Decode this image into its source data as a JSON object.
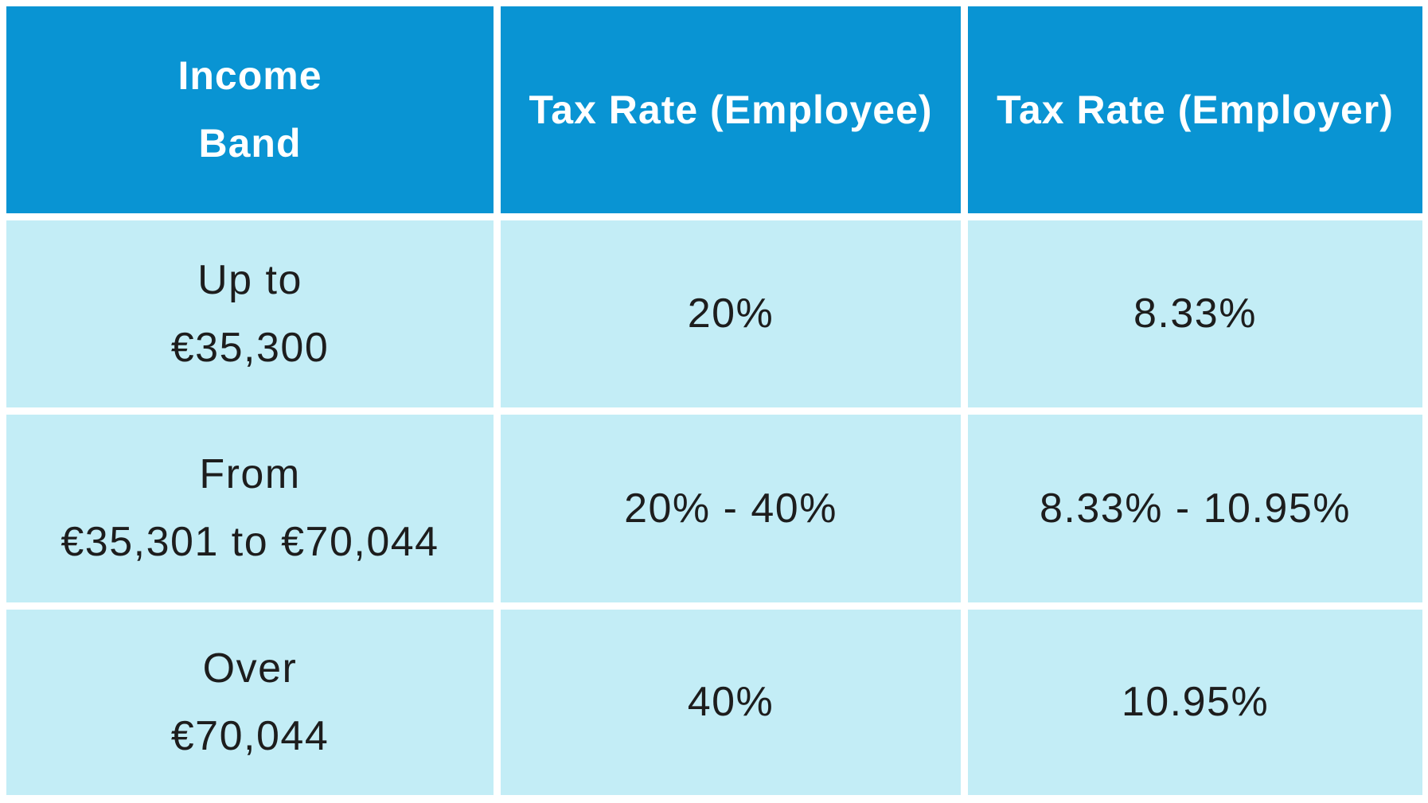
{
  "colors": {
    "header_bg": "#0994d3",
    "cell_bg": "#c3edf6",
    "header_text": "#ffffff",
    "body_text": "#1d1d1d",
    "divider": "#ffffff"
  },
  "table": {
    "header": [
      "Income\nBand",
      "Tax Rate (Employee)",
      "Tax Rate (Employer)"
    ],
    "rows": [
      [
        "Up to\n€35,300",
        "20%",
        "8.33%"
      ],
      [
        "From\n€35,301 to €70,044",
        "20% - 40%",
        "8.33% - 10.95%"
      ],
      [
        "Over\n€70,044",
        "40%",
        "10.95%"
      ]
    ]
  },
  "chart_data": {
    "type": "table",
    "title": "",
    "columns": [
      "Income Band",
      "Tax Rate (Employee)",
      "Tax Rate (Employer)"
    ],
    "rows": [
      {
        "income_band": "Up to €35,300",
        "tax_rate_employee": "20%",
        "tax_rate_employer": "8.33%"
      },
      {
        "income_band": "From €35,301 to €70,044",
        "tax_rate_employee": "20% - 40%",
        "tax_rate_employer": "8.33% - 10.95%"
      },
      {
        "income_band": "Over €70,044",
        "tax_rate_employee": "40%",
        "tax_rate_employer": "10.95%"
      }
    ],
    "layout": {
      "header_background": "#0994d3",
      "row_background": "#c3edf6",
      "grid_divider": "white"
    }
  }
}
